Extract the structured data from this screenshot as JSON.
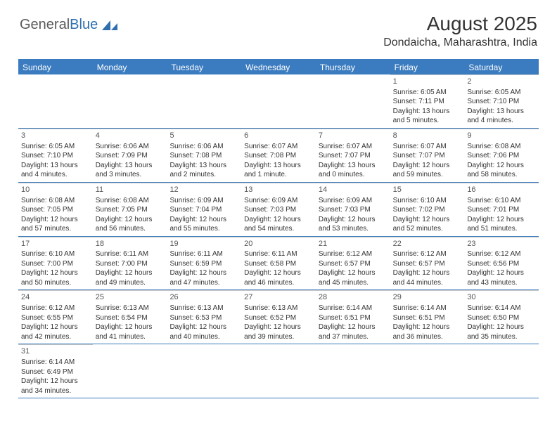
{
  "logo": {
    "text1": "General",
    "text2": "Blue"
  },
  "title": "August 2025",
  "location": "Dondaicha, Maharashtra, India",
  "colors": {
    "header_bg": "#3b7bbf",
    "week_divider": "#3b7bbf",
    "day_divider": "#c8c8c8",
    "text": "#333333",
    "logo_gray": "#5a5a5a",
    "logo_blue": "#2f6fae"
  },
  "weekdays": [
    "Sunday",
    "Monday",
    "Tuesday",
    "Wednesday",
    "Thursday",
    "Friday",
    "Saturday"
  ],
  "weeks": [
    [
      {
        "n": "",
        "empty": true
      },
      {
        "n": "",
        "empty": true
      },
      {
        "n": "",
        "empty": true
      },
      {
        "n": "",
        "empty": true
      },
      {
        "n": "",
        "empty": true
      },
      {
        "n": "1",
        "sr": "6:05 AM",
        "ss": "7:11 PM",
        "dl": "13 hours and 5 minutes."
      },
      {
        "n": "2",
        "sr": "6:05 AM",
        "ss": "7:10 PM",
        "dl": "13 hours and 4 minutes."
      }
    ],
    [
      {
        "n": "3",
        "sr": "6:05 AM",
        "ss": "7:10 PM",
        "dl": "13 hours and 4 minutes."
      },
      {
        "n": "4",
        "sr": "6:06 AM",
        "ss": "7:09 PM",
        "dl": "13 hours and 3 minutes."
      },
      {
        "n": "5",
        "sr": "6:06 AM",
        "ss": "7:08 PM",
        "dl": "13 hours and 2 minutes."
      },
      {
        "n": "6",
        "sr": "6:07 AM",
        "ss": "7:08 PM",
        "dl": "13 hours and 1 minute."
      },
      {
        "n": "7",
        "sr": "6:07 AM",
        "ss": "7:07 PM",
        "dl": "13 hours and 0 minutes."
      },
      {
        "n": "8",
        "sr": "6:07 AM",
        "ss": "7:07 PM",
        "dl": "12 hours and 59 minutes."
      },
      {
        "n": "9",
        "sr": "6:08 AM",
        "ss": "7:06 PM",
        "dl": "12 hours and 58 minutes."
      }
    ],
    [
      {
        "n": "10",
        "sr": "6:08 AM",
        "ss": "7:05 PM",
        "dl": "12 hours and 57 minutes."
      },
      {
        "n": "11",
        "sr": "6:08 AM",
        "ss": "7:05 PM",
        "dl": "12 hours and 56 minutes."
      },
      {
        "n": "12",
        "sr": "6:09 AM",
        "ss": "7:04 PM",
        "dl": "12 hours and 55 minutes."
      },
      {
        "n": "13",
        "sr": "6:09 AM",
        "ss": "7:03 PM",
        "dl": "12 hours and 54 minutes."
      },
      {
        "n": "14",
        "sr": "6:09 AM",
        "ss": "7:03 PM",
        "dl": "12 hours and 53 minutes."
      },
      {
        "n": "15",
        "sr": "6:10 AM",
        "ss": "7:02 PM",
        "dl": "12 hours and 52 minutes."
      },
      {
        "n": "16",
        "sr": "6:10 AM",
        "ss": "7:01 PM",
        "dl": "12 hours and 51 minutes."
      }
    ],
    [
      {
        "n": "17",
        "sr": "6:10 AM",
        "ss": "7:00 PM",
        "dl": "12 hours and 50 minutes."
      },
      {
        "n": "18",
        "sr": "6:11 AM",
        "ss": "7:00 PM",
        "dl": "12 hours and 49 minutes."
      },
      {
        "n": "19",
        "sr": "6:11 AM",
        "ss": "6:59 PM",
        "dl": "12 hours and 47 minutes."
      },
      {
        "n": "20",
        "sr": "6:11 AM",
        "ss": "6:58 PM",
        "dl": "12 hours and 46 minutes."
      },
      {
        "n": "21",
        "sr": "6:12 AM",
        "ss": "6:57 PM",
        "dl": "12 hours and 45 minutes."
      },
      {
        "n": "22",
        "sr": "6:12 AM",
        "ss": "6:57 PM",
        "dl": "12 hours and 44 minutes."
      },
      {
        "n": "23",
        "sr": "6:12 AM",
        "ss": "6:56 PM",
        "dl": "12 hours and 43 minutes."
      }
    ],
    [
      {
        "n": "24",
        "sr": "6:12 AM",
        "ss": "6:55 PM",
        "dl": "12 hours and 42 minutes."
      },
      {
        "n": "25",
        "sr": "6:13 AM",
        "ss": "6:54 PM",
        "dl": "12 hours and 41 minutes."
      },
      {
        "n": "26",
        "sr": "6:13 AM",
        "ss": "6:53 PM",
        "dl": "12 hours and 40 minutes."
      },
      {
        "n": "27",
        "sr": "6:13 AM",
        "ss": "6:52 PM",
        "dl": "12 hours and 39 minutes."
      },
      {
        "n": "28",
        "sr": "6:14 AM",
        "ss": "6:51 PM",
        "dl": "12 hours and 37 minutes."
      },
      {
        "n": "29",
        "sr": "6:14 AM",
        "ss": "6:51 PM",
        "dl": "12 hours and 36 minutes."
      },
      {
        "n": "30",
        "sr": "6:14 AM",
        "ss": "6:50 PM",
        "dl": "12 hours and 35 minutes."
      }
    ],
    [
      {
        "n": "31",
        "sr": "6:14 AM",
        "ss": "6:49 PM",
        "dl": "12 hours and 34 minutes."
      },
      {
        "n": "",
        "empty": true
      },
      {
        "n": "",
        "empty": true
      },
      {
        "n": "",
        "empty": true
      },
      {
        "n": "",
        "empty": true
      },
      {
        "n": "",
        "empty": true
      },
      {
        "n": "",
        "empty": true
      }
    ]
  ],
  "labels": {
    "sunrise": "Sunrise:",
    "sunset": "Sunset:",
    "daylight": "Daylight:"
  }
}
